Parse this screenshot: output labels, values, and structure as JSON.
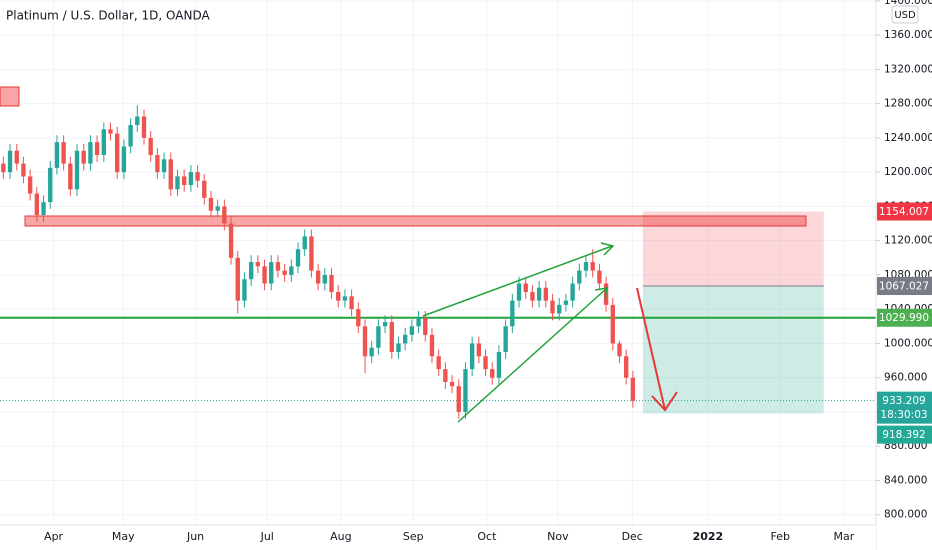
{
  "chart_data": {
    "type": "candlestick",
    "title": "Platinum / U.S. Dollar, 1D, OANDA",
    "currency": "USD",
    "open": [
      1210,
      1200,
      1225,
      1210,
      1195,
      1175,
      1150,
      1165,
      1205,
      1235,
      1210,
      1180,
      1225,
      1210,
      1235,
      1220,
      1250,
      1245,
      1200,
      1230,
      1255,
      1265,
      1240,
      1220,
      1200,
      1215,
      1180,
      1195,
      1185,
      1200,
      1190,
      1170,
      1155,
      1160,
      1140,
      1100,
      1050,
      1075,
      1095,
      1090,
      1070,
      1095,
      1085,
      1080,
      1090,
      1110,
      1125,
      1085,
      1070,
      1080,
      1060,
      1050,
      1055,
      1040,
      1020,
      985,
      995,
      1020,
      1025,
      990,
      1000,
      1010,
      1020,
      1030,
      1010,
      985,
      970,
      955,
      950,
      920,
      970,
      1000,
      985,
      970,
      960,
      990,
      1020,
      1050,
      1070,
      1060,
      1050,
      1065,
      1050,
      1035,
      1045,
      1050,
      1070,
      1085,
      1095,
      1085,
      1070,
      1045,
      1000,
      985,
      960
    ],
    "high": [
      1218,
      1233,
      1233,
      1218,
      1203,
      1183,
      1173,
      1213,
      1243,
      1243,
      1218,
      1233,
      1233,
      1243,
      1243,
      1258,
      1258,
      1253,
      1238,
      1263,
      1278,
      1273,
      1248,
      1228,
      1223,
      1223,
      1203,
      1203,
      1208,
      1208,
      1198,
      1178,
      1168,
      1168,
      1148,
      1108,
      1083,
      1103,
      1103,
      1098,
      1103,
      1103,
      1093,
      1098,
      1118,
      1133,
      1133,
      1093,
      1088,
      1088,
      1068,
      1063,
      1063,
      1048,
      1028,
      1003,
      1028,
      1033,
      1033,
      1008,
      1018,
      1028,
      1038,
      1038,
      1018,
      993,
      978,
      963,
      958,
      978,
      1008,
      1008,
      993,
      978,
      998,
      1028,
      1058,
      1078,
      1078,
      1068,
      1073,
      1073,
      1058,
      1053,
      1058,
      1078,
      1093,
      1103,
      1110,
      1093,
      1078,
      1053,
      1003,
      993,
      968
    ],
    "low": [
      1192,
      1192,
      1202,
      1187,
      1167,
      1142,
      1142,
      1157,
      1197,
      1202,
      1172,
      1172,
      1202,
      1202,
      1212,
      1212,
      1237,
      1192,
      1192,
      1222,
      1247,
      1232,
      1212,
      1192,
      1192,
      1172,
      1172,
      1177,
      1177,
      1182,
      1162,
      1147,
      1147,
      1132,
      1092,
      1035,
      1042,
      1067,
      1082,
      1062,
      1062,
      1077,
      1072,
      1072,
      1082,
      1102,
      1077,
      1062,
      1062,
      1052,
      1042,
      1042,
      1032,
      1012,
      965,
      977,
      987,
      1012,
      982,
      982,
      992,
      1002,
      1012,
      1002,
      977,
      962,
      947,
      942,
      912,
      912,
      962,
      977,
      962,
      952,
      952,
      982,
      1012,
      1042,
      1052,
      1042,
      1042,
      1042,
      1027,
      1027,
      1037,
      1042,
      1062,
      1077,
      1077,
      1062,
      1037,
      992,
      977,
      952,
      925
    ],
    "close": [
      1200,
      1225,
      1210,
      1195,
      1175,
      1150,
      1165,
      1205,
      1235,
      1210,
      1180,
      1225,
      1210,
      1235,
      1220,
      1250,
      1245,
      1200,
      1230,
      1255,
      1265,
      1240,
      1220,
      1200,
      1215,
      1180,
      1195,
      1185,
      1200,
      1190,
      1170,
      1155,
      1160,
      1140,
      1100,
      1050,
      1075,
      1095,
      1090,
      1070,
      1095,
      1085,
      1080,
      1090,
      1110,
      1125,
      1085,
      1070,
      1080,
      1060,
      1050,
      1055,
      1040,
      1020,
      985,
      995,
      1020,
      1025,
      990,
      1000,
      1010,
      1020,
      1030,
      1010,
      985,
      970,
      955,
      950,
      920,
      970,
      1000,
      985,
      970,
      960,
      990,
      1020,
      1050,
      1070,
      1060,
      1050,
      1065,
      1050,
      1035,
      1045,
      1050,
      1070,
      1085,
      1095,
      1085,
      1070,
      1045,
      1000,
      985,
      960,
      933
    ],
    "up_color": "#26a69a",
    "down_color": "#ef5350",
    "xlim": [
      -0.5,
      130.3
    ],
    "xticks": [
      {
        "value": 7.5,
        "label": "Apr"
      },
      {
        "value": 17.9,
        "label": "May"
      },
      {
        "value": 28.7,
        "label": "Jun"
      },
      {
        "value": 39.4,
        "label": "Jul"
      },
      {
        "value": 50.4,
        "label": "Aug"
      },
      {
        "value": 61.2,
        "label": "Sep"
      },
      {
        "value": 72.2,
        "label": "Oct"
      },
      {
        "value": 82.8,
        "label": "Nov"
      },
      {
        "value": 93.9,
        "label": "Dec"
      },
      {
        "value": 105.2,
        "label": "2022"
      },
      {
        "value": 116,
        "label": "Feb"
      },
      {
        "value": 125.5,
        "label": "Mar"
      }
    ],
    "ylim": [
      788,
      1401
    ],
    "yticks": [
      {
        "value": 800,
        "label": "800.000"
      },
      {
        "value": 840,
        "label": "840.000"
      },
      {
        "value": 880,
        "label": "880.000"
      },
      {
        "value": 920,
        "label": "920.000"
      },
      {
        "value": 960,
        "label": "960.000"
      },
      {
        "value": 1000,
        "label": "1000.000"
      },
      {
        "value": 1040,
        "label": "1040.000"
      },
      {
        "value": 1080,
        "label": "1080.000"
      },
      {
        "value": 1120,
        "label": "1120.000"
      },
      {
        "value": 1160,
        "label": "1160.000"
      },
      {
        "value": 1200,
        "label": "1200.000"
      },
      {
        "value": 1240,
        "label": "1240.000"
      },
      {
        "value": 1280,
        "label": "1280.000"
      },
      {
        "value": 1320,
        "label": "1320.000"
      },
      {
        "value": 1360,
        "label": "1360.000"
      },
      {
        "value": 1400,
        "label": "1400.000"
      }
    ],
    "grid": true,
    "price_labels": [
      {
        "value": 1154.007,
        "label": "1154.007",
        "color": "#f23645"
      },
      {
        "value": 1067.027,
        "label": "1067.027",
        "color": "#787b86"
      },
      {
        "value": 1029.99,
        "label": "1029.990",
        "color": "#4caf50"
      },
      {
        "value": 933.209,
        "label": "933.209",
        "color": "#26a69a",
        "countdown": "18:30:03"
      },
      {
        "value": 918.392,
        "label": "918.392",
        "color": "#22ab94"
      }
    ]
  }
}
